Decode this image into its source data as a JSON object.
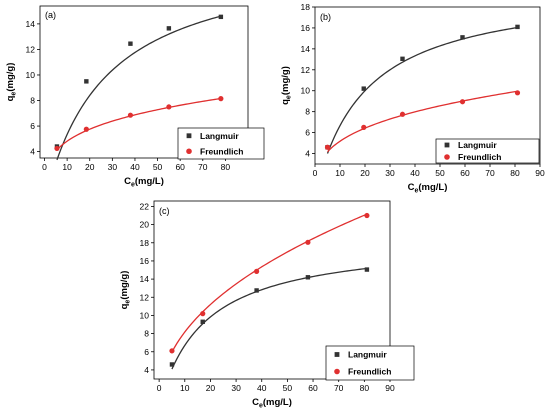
{
  "chart_data": [
    {
      "panel_label": "(a)",
      "type": "scatter",
      "xlabel_main": "C",
      "xlabel_sub": "e",
      "xlabel_unit": "(mg/L)",
      "ylabel_main": "q",
      "ylabel_sub": "e",
      "ylabel_unit": "(mg/g)",
      "xlim": [
        -2,
        90
      ],
      "ylim": [
        3.5,
        15.4
      ],
      "xticks": [
        0,
        10,
        20,
        30,
        40,
        50,
        60,
        70,
        80
      ],
      "yticks": [
        4,
        6,
        8,
        10,
        12,
        14
      ],
      "legend_position": "lower-right",
      "series": [
        {
          "name": "Langmuir",
          "color": "#333333",
          "marker": "square",
          "points": [
            [
              5.5,
              4.4
            ],
            [
              18.5,
              9.5
            ],
            [
              38,
              12.45
            ],
            [
              55,
              13.65
            ],
            [
              78,
              14.55
            ]
          ],
          "curve": {
            "model": "langmuir",
            "qmax": 19.6,
            "KL": 0.0375
          }
        },
        {
          "name": "Freundlich",
          "color": "#e03030",
          "marker": "circle",
          "points": [
            [
              5.5,
              4.25
            ],
            [
              18.5,
              5.75
            ],
            [
              38,
              6.85
            ],
            [
              55,
              7.5
            ],
            [
              78,
              8.15
            ]
          ],
          "curve": {
            "model": "freundlich",
            "KF": 2.67,
            "n": 3.9
          }
        }
      ]
    },
    {
      "panel_label": "(b)",
      "type": "scatter",
      "xlabel_main": "C",
      "xlabel_sub": "e",
      "xlabel_unit": "(mg/L)",
      "ylabel_main": "q",
      "ylabel_sub": "e",
      "ylabel_unit": "(mg/g)",
      "xlim": [
        0,
        90
      ],
      "ylim": [
        3,
        18
      ],
      "xticks": [
        0,
        10,
        20,
        30,
        40,
        50,
        60,
        70,
        80,
        90
      ],
      "yticks": [
        4,
        6,
        8,
        10,
        12,
        14,
        16,
        18
      ],
      "legend_position": "lower-right",
      "series": [
        {
          "name": "Langmuir",
          "color": "#333333",
          "marker": "square",
          "points": [
            [
              5,
              4.6
            ],
            [
              19.5,
              10.2
            ],
            [
              35,
              13.05
            ],
            [
              59,
              15.1
            ],
            [
              81,
              16.1
            ]
          ],
          "curve": {
            "model": "langmuir",
            "qmax": 20.0,
            "KL": 0.05
          }
        },
        {
          "name": "Freundlich",
          "color": "#e03030",
          "marker": "circle",
          "points": [
            [
              5,
              4.6
            ],
            [
              19.5,
              6.5
            ],
            [
              35,
              7.75
            ],
            [
              59,
              8.95
            ],
            [
              81,
              9.8
            ]
          ],
          "curve": {
            "model": "freundlich",
            "KF": 2.52,
            "n": 3.2
          }
        }
      ]
    },
    {
      "panel_label": "(c)",
      "type": "scatter",
      "xlabel_main": "C",
      "xlabel_sub": "e",
      "xlabel_unit": "(mg/L)",
      "ylabel_main": "q",
      "ylabel_sub": "e",
      "ylabel_unit": "(mg/g)",
      "xlim": [
        -2,
        90
      ],
      "ylim": [
        3,
        22.6
      ],
      "xticks": [
        0,
        10,
        20,
        30,
        40,
        50,
        60,
        70,
        80,
        90
      ],
      "yticks": [
        4,
        6,
        8,
        10,
        12,
        14,
        16,
        18,
        20,
        22
      ],
      "legend_position": "lower-right",
      "series": [
        {
          "name": "Langmuir",
          "color": "#333333",
          "marker": "square",
          "points": [
            [
              5,
              4.6
            ],
            [
              17,
              9.3
            ],
            [
              38,
              12.75
            ],
            [
              58,
              14.2
            ],
            [
              81,
              15.05
            ]
          ],
          "curve": {
            "model": "langmuir",
            "qmax": 18.46,
            "KL": 0.057
          }
        },
        {
          "name": "Freundlich",
          "color": "#e03030",
          "marker": "circle",
          "points": [
            [
              5,
              6.1
            ],
            [
              17,
              10.2
            ],
            [
              38,
              14.85
            ],
            [
              58,
              18.05
            ],
            [
              81,
              21.0
            ]
          ],
          "curve": {
            "model": "freundlich",
            "KF": 2.87,
            "n": 2.2
          }
        }
      ]
    }
  ]
}
